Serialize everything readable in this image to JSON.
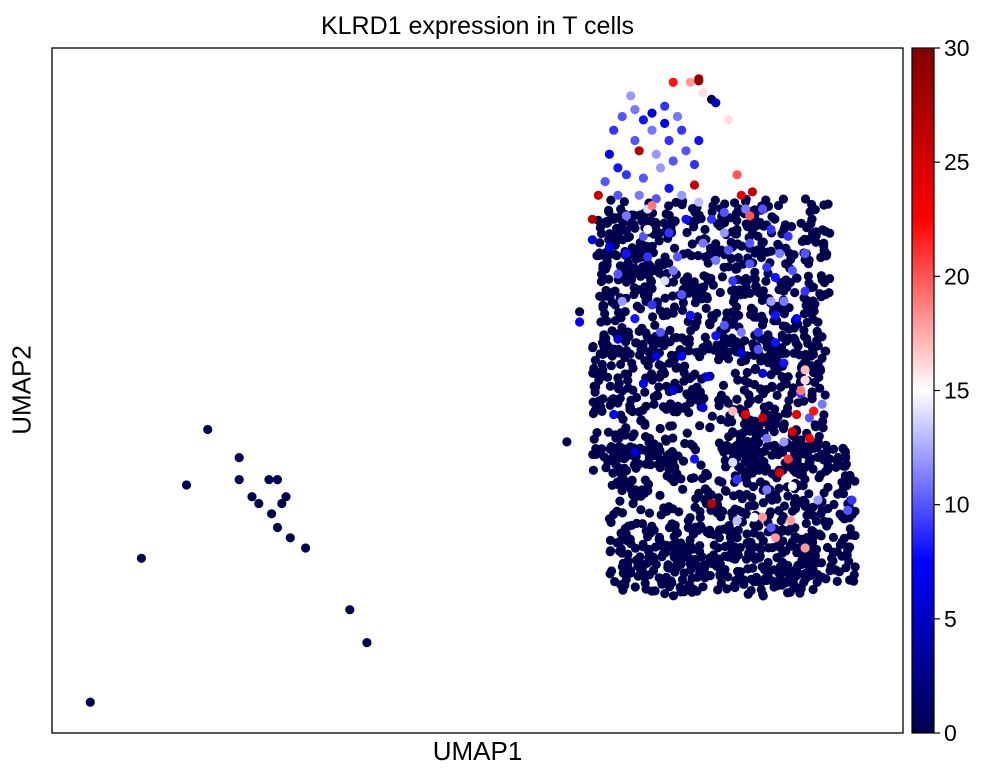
{
  "chart_data": {
    "type": "scatter",
    "title": "KLRD1 expression in T cells",
    "xlabel": "UMAP1",
    "ylabel": "UMAP2",
    "xlim": [
      0,
      100
    ],
    "ylim": [
      0,
      100
    ],
    "x_ticks_shown": false,
    "y_ticks_shown": false,
    "grid": false,
    "colorbar": {
      "label": "",
      "range": [
        0,
        30
      ],
      "ticks": [
        "0",
        "5",
        "10",
        "15",
        "20",
        "25",
        "30"
      ],
      "colormap": "seismic",
      "colors": [
        "#00004c",
        "#0000ff",
        "#ffffff",
        "#ff0000",
        "#800000"
      ]
    },
    "series": [
      {
        "color_by": "KLRD1 expression",
        "points": [
          [
            4.5,
            4.5,
            0
          ],
          [
            10.5,
            25.5,
            0
          ],
          [
            15.8,
            36.2,
            0
          ],
          [
            18.3,
            44.3,
            0
          ],
          [
            22.0,
            40.2,
            0
          ],
          [
            22.0,
            37.0,
            0
          ],
          [
            23.5,
            34.5,
            0
          ],
          [
            24.3,
            33.5,
            0
          ],
          [
            25.5,
            37.0,
            0
          ],
          [
            26.5,
            37.0,
            0
          ],
          [
            25.8,
            32.0,
            0
          ],
          [
            27.0,
            33.5,
            0
          ],
          [
            27.5,
            34.5,
            0
          ],
          [
            26.5,
            30.0,
            0
          ],
          [
            28.0,
            28.5,
            0
          ],
          [
            29.8,
            27.0,
            0
          ],
          [
            35.0,
            18.0,
            0
          ],
          [
            37.0,
            13.2,
            0
          ],
          [
            60.5,
            42.5,
            0
          ],
          [
            62.0,
            61.5,
            0
          ],
          [
            64.5,
            60.0,
            0
          ],
          [
            76.0,
            95.5,
            28
          ],
          [
            76.0,
            95.2,
            29
          ],
          [
            75.0,
            95.0,
            18
          ],
          [
            73.0,
            95.0,
            22
          ],
          [
            76.5,
            93.5,
            16
          ],
          [
            79.5,
            89.5,
            16
          ],
          [
            77.5,
            92.5,
            0
          ],
          [
            68.0,
            93.0,
            12
          ],
          [
            68.5,
            91.0,
            11
          ],
          [
            70.5,
            90.5,
            6
          ],
          [
            72.0,
            89.0,
            7
          ],
          [
            74.0,
            88.0,
            9
          ],
          [
            78.0,
            92.0,
            5
          ],
          [
            69.0,
            85.0,
            27
          ],
          [
            75.5,
            80.0,
            26
          ],
          [
            64.2,
            78.5,
            26
          ],
          [
            63.5,
            75.0,
            27
          ],
          [
            81.0,
            78.5,
            24
          ],
          [
            82.0,
            75.5,
            20
          ],
          [
            70.5,
            77.0,
            19
          ],
          [
            70.0,
            73.5,
            15
          ],
          [
            70.0,
            76.5,
            14
          ],
          [
            76.0,
            77.5,
            13
          ],
          [
            80.5,
            81.5,
            20
          ],
          [
            82.3,
            79.0,
            26
          ],
          [
            88.0,
            50.0,
            19
          ],
          [
            87.5,
            46.5,
            24
          ],
          [
            89.5,
            47.0,
            22
          ],
          [
            89.0,
            43.0,
            23
          ],
          [
            87.0,
            44.0,
            25
          ],
          [
            86.5,
            40.0,
            21
          ],
          [
            85.5,
            38.0,
            25
          ],
          [
            80.0,
            47.0,
            17
          ],
          [
            81.5,
            46.5,
            24
          ],
          [
            83.5,
            46.0,
            26
          ],
          [
            88.5,
            53.0,
            17
          ],
          [
            88.5,
            51.5,
            16
          ],
          [
            77.5,
            33.5,
            27
          ],
          [
            80.0,
            39.5,
            14
          ],
          [
            80.5,
            31.0,
            13
          ],
          [
            82.5,
            31.5,
            15
          ],
          [
            83.5,
            31.5,
            18
          ],
          [
            85.0,
            28.5,
            18
          ],
          [
            86.8,
            31.0,
            18
          ],
          [
            88.5,
            27.0,
            18
          ],
          [
            87.0,
            36.0,
            15
          ],
          [
            90.0,
            34.0,
            12
          ],
          [
            93.5,
            32.5,
            10
          ],
          [
            94.0,
            34.0,
            9
          ],
          [
            72.0,
            66.0,
            14
          ],
          [
            73.0,
            67.5,
            11
          ],
          [
            74.0,
            64.0,
            10
          ],
          [
            75.0,
            61.0,
            8
          ],
          [
            78.0,
            58.0,
            8
          ],
          [
            79.0,
            59.5,
            10
          ],
          [
            81.0,
            58.5,
            11
          ],
          [
            83.0,
            58.5,
            9
          ],
          [
            85.0,
            61.0,
            8
          ],
          [
            86.0,
            63.0,
            11
          ],
          [
            88.5,
            64.5,
            9
          ],
          [
            84.5,
            63.0,
            12
          ],
          [
            80.0,
            66.0,
            9
          ],
          [
            79.5,
            70.5,
            10
          ],
          [
            78.0,
            69.0,
            11
          ],
          [
            66.5,
            67.0,
            10
          ],
          [
            67.0,
            63.0,
            12
          ],
          [
            68.5,
            60.5,
            8
          ],
          [
            70.5,
            62.5,
            9
          ],
          [
            71.5,
            58.5,
            10
          ],
          [
            74.0,
            55.0,
            7
          ],
          [
            77.0,
            52.0,
            7
          ],
          [
            81.0,
            55.5,
            6
          ],
          [
            83.5,
            52.5,
            6
          ],
          [
            86.0,
            54.0,
            8
          ],
          [
            88.0,
            49.5,
            9
          ],
          [
            89.0,
            46.0,
            10
          ],
          [
            90.5,
            48.0,
            11
          ],
          [
            84.0,
            43.0,
            11
          ],
          [
            86.0,
            42.5,
            12
          ],
          [
            80.5,
            37.0,
            9
          ],
          [
            84.0,
            35.5,
            11
          ],
          [
            84.5,
            30.0,
            10
          ],
          [
            66.0,
            46.5,
            7
          ],
          [
            68.5,
            41.0,
            6
          ],
          [
            76.5,
            47.5,
            6
          ],
          [
            75.5,
            40.0,
            8
          ],
          [
            65.5,
            84.5,
            7
          ],
          [
            67.5,
            81.5,
            9
          ],
          [
            69.5,
            81.0,
            10
          ],
          [
            71.5,
            82.5,
            12
          ],
          [
            72.5,
            79.5,
            8
          ],
          [
            66.5,
            78.5,
            10
          ],
          [
            67.5,
            75.5,
            11
          ],
          [
            69.5,
            72.5,
            10
          ],
          [
            72.5,
            73.0,
            9
          ],
          [
            74.5,
            75.0,
            8
          ],
          [
            77.5,
            75.0,
            9
          ],
          [
            79.0,
            76.0,
            10
          ],
          [
            81.5,
            76.5,
            11
          ],
          [
            83.5,
            76.5,
            10
          ],
          [
            84.5,
            73.5,
            9
          ],
          [
            82.0,
            71.5,
            10
          ],
          [
            79.0,
            73.0,
            12
          ],
          [
            76.5,
            71.5,
            11
          ],
          [
            73.5,
            69.5,
            10
          ],
          [
            70.0,
            69.5,
            9
          ],
          [
            67.5,
            70.0,
            8
          ],
          [
            68.5,
            86.5,
            10
          ],
          [
            70.5,
            88.0,
            11
          ],
          [
            72.5,
            86.5,
            9
          ],
          [
            74.5,
            85.0,
            10
          ],
          [
            76.0,
            86.5,
            8
          ],
          [
            71.0,
            84.5,
            12
          ],
          [
            73.0,
            83.5,
            10
          ],
          [
            75.5,
            83.0,
            9
          ],
          [
            69.0,
            78.5,
            11
          ],
          [
            71.0,
            78.0,
            10
          ],
          [
            74.0,
            78.5,
            12
          ],
          [
            66.0,
            88.0,
            9
          ],
          [
            67.0,
            90.0,
            10
          ],
          [
            69.5,
            89.5,
            8
          ],
          [
            72.0,
            91.5,
            9
          ],
          [
            73.5,
            90.0,
            11
          ],
          [
            66.5,
            82.5,
            8
          ],
          [
            65.0,
            80.5,
            10
          ],
          [
            63.5,
            72.0,
            6
          ],
          [
            65.5,
            71.0,
            7
          ],
          [
            62.0,
            60.0,
            7
          ],
          [
            66.5,
            57.5,
            6
          ],
          [
            71.0,
            55.0,
            6
          ],
          [
            69.5,
            51.0,
            7
          ],
          [
            73.0,
            50.0,
            6
          ],
          [
            82.0,
            68.5,
            10
          ],
          [
            84.0,
            68.0,
            9
          ],
          [
            85.0,
            66.5,
            8
          ],
          [
            87.0,
            67.5,
            10
          ],
          [
            85.5,
            70.0,
            11
          ],
          [
            86.5,
            72.5,
            9
          ],
          [
            88.5,
            70.0,
            10
          ],
          [
            87.5,
            60.5,
            7
          ],
          [
            85.0,
            57.0,
            8
          ],
          [
            83.0,
            56.0,
            10
          ]
        ]
      }
    ],
    "background_cells": {
      "value": 0,
      "regions": [
        {
          "x": [
            64.5,
            91.5
          ],
          "y": [
            55,
            78
          ]
        },
        {
          "x": [
            63.5,
            91
          ],
          "y": [
            38,
            58
          ]
        },
        {
          "x": [
            65.5,
            94.5
          ],
          "y": [
            22,
            42
          ]
        },
        {
          "x": [
            66,
            90
          ],
          "y": [
            20,
            30
          ]
        },
        {
          "x": [
            64,
            71
          ],
          "y": [
            63,
            76
          ]
        },
        {
          "x": [
            72,
            84
          ],
          "y": [
            38,
            46
          ]
        }
      ]
    }
  }
}
